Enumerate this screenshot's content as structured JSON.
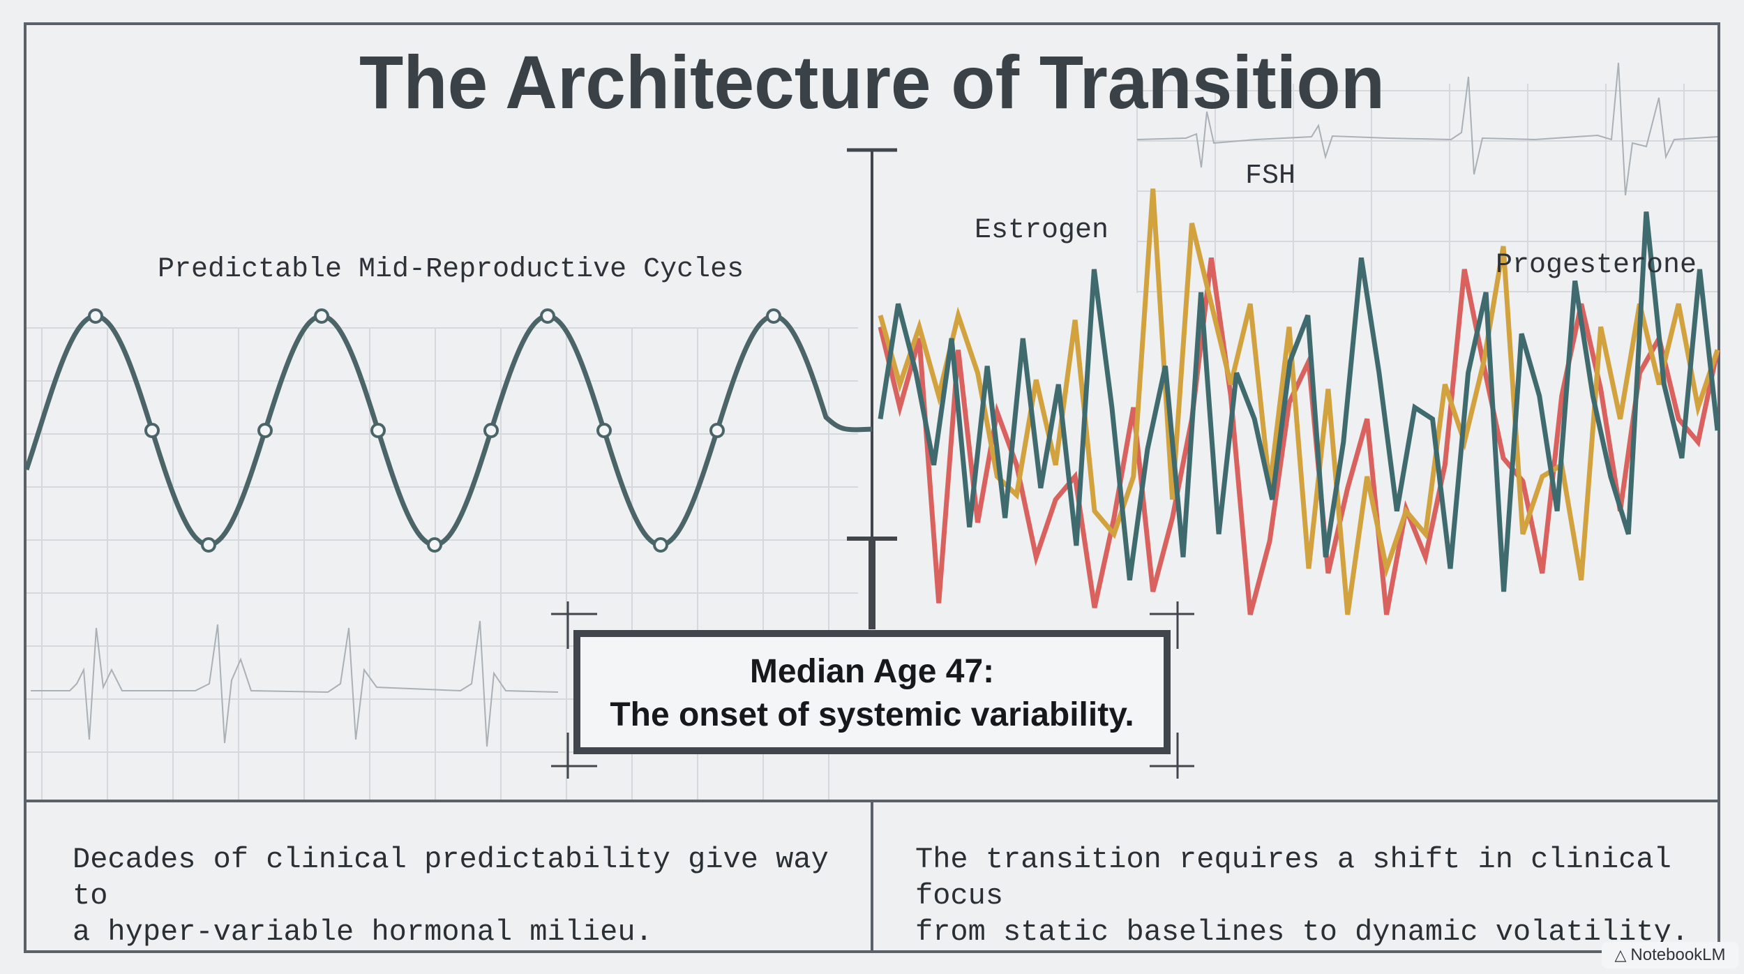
{
  "title": "The Architecture of Transition",
  "labels": {
    "predictable": "Predictable Mid-Reproductive Cycles",
    "estrogen": "Estrogen",
    "fsh": "FSH",
    "progesterone": "Progesterone"
  },
  "callout": {
    "line1": "Median Age 47:",
    "line2": "The onset of systemic variability."
  },
  "footer": {
    "left_line1": "Decades of clinical predictability give way to",
    "left_line2": "a hyper-variable hormonal milieu.",
    "right_line1": "The transition requires a shift in clinical focus",
    "right_line2": "from static baselines to dynamic volatility."
  },
  "badge": {
    "label": "NotebookLM",
    "icon": "notebook-logo-icon"
  },
  "colors": {
    "background": "#eef0f2",
    "frame": "#5b6168",
    "sine": "#4a6468",
    "estrogen": "#d9625f",
    "fsh": "#d1a23d",
    "progesterone": "#3f6a6e",
    "grid": "#d5d9dd"
  },
  "chart_data": {
    "type": "line",
    "regular_cycles": {
      "count": 3.5,
      "markers": "peaks, troughs and zero-crossings"
    },
    "series": [
      {
        "name": "Estrogen",
        "values": [
          0.45,
          0.1,
          0.4,
          -0.75,
          0.35,
          -0.4,
          0.08,
          -0.15,
          -0.55,
          -0.3,
          -0.2,
          -0.77,
          -0.38,
          0.1,
          -0.7,
          -0.38,
          0.05,
          0.75,
          0.15,
          -0.8,
          -0.48,
          0.12,
          0.3,
          -0.62,
          -0.25,
          0.05,
          -0.8,
          -0.34,
          -0.55,
          -0.15,
          0.7,
          0.28,
          -0.12,
          -0.22,
          -0.62,
          0.15,
          0.55,
          0.18,
          -0.35,
          0.25,
          0.4,
          0.05,
          -0.05,
          0.35
        ]
      },
      {
        "name": "FSH",
        "values": [
          0.5,
          0.2,
          0.45,
          0.15,
          0.5,
          0.25,
          -0.2,
          -0.28,
          0.22,
          -0.15,
          0.48,
          -0.35,
          -0.45,
          -0.2,
          1.05,
          -0.3,
          0.9,
          0.55,
          0.2,
          0.55,
          -0.25,
          0.45,
          -0.6,
          0.18,
          -0.8,
          -0.2,
          -0.6,
          -0.35,
          -0.45,
          0.2,
          -0.05,
          0.3,
          0.8,
          -0.45,
          -0.2,
          -0.15,
          -0.65,
          0.45,
          0.05,
          0.55,
          0.2,
          0.55,
          0.1,
          0.35
        ]
      },
      {
        "name": "Progesterone",
        "values": [
          0.05,
          0.55,
          0.25,
          -0.15,
          0.4,
          -0.42,
          0.28,
          -0.38,
          0.4,
          -0.25,
          0.2,
          -0.5,
          0.7,
          0.1,
          -0.65,
          -0.08,
          0.28,
          -0.55,
          0.6,
          -0.45,
          0.25,
          0.05,
          -0.3,
          0.3,
          0.5,
          -0.55,
          -0.05,
          0.75,
          0.25,
          -0.35,
          0.1,
          0.05,
          -0.6,
          0.25,
          0.6,
          -0.7,
          0.42,
          0.15,
          -0.35,
          0.65,
          0.15,
          -0.2,
          -0.45,
          0.95,
          0.2,
          -0.12,
          0.7,
          0.0
        ]
      }
    ]
  }
}
